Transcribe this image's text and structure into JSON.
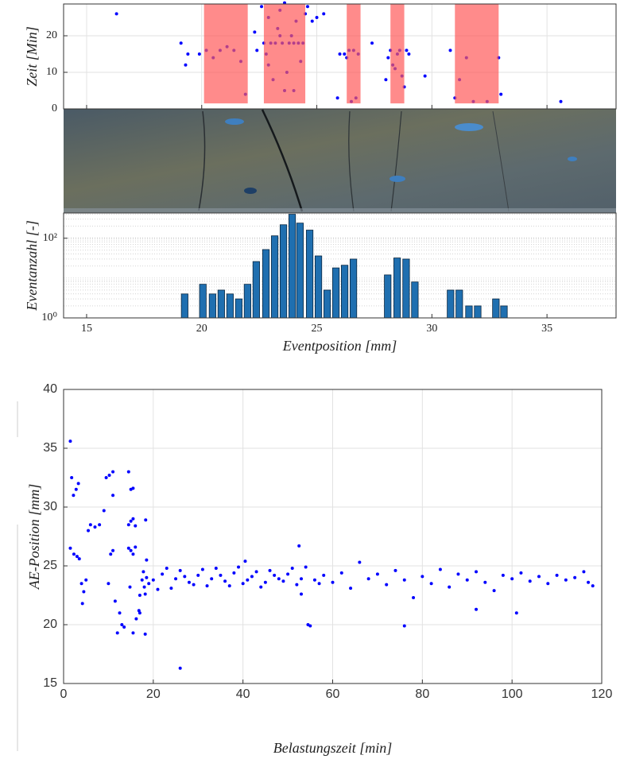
{
  "chart_data": [
    {
      "type": "scatter",
      "ylabel": "Zeit [Min]",
      "xlim": [
        14,
        38
      ],
      "xticks": [
        15,
        20,
        25,
        30,
        35
      ],
      "xtick_labels": false,
      "ylim": [
        0,
        28.7
      ],
      "yticks": [
        0,
        10,
        20
      ],
      "grid": true,
      "regions": [
        {
          "x": [
            20.1,
            22.0
          ],
          "y": [
            1.5,
            28.7
          ]
        },
        {
          "x": [
            22.7,
            24.5
          ],
          "y": [
            1.5,
            28.7
          ]
        },
        {
          "x": [
            26.3,
            26.9
          ],
          "y": [
            1.5,
            28.7
          ]
        },
        {
          "x": [
            28.2,
            28.8
          ],
          "y": [
            1.5,
            28.7
          ]
        },
        {
          "x": [
            31.0,
            32.9
          ],
          "y": [
            1.5,
            28.7
          ]
        }
      ],
      "region_color": "#ff5a5a",
      "series": [
        {
          "color": "#0000ff",
          "x": [
            16.3,
            19.1,
            19.3,
            19.4,
            19.9,
            20.2,
            20.5,
            20.8,
            21.1,
            21.4,
            21.7,
            21.9,
            22.3,
            22.4,
            22.6,
            22.7,
            22.9,
            23.0,
            23.2,
            23.3,
            23.4,
            23.5,
            23.6,
            23.7,
            23.8,
            23.9,
            24.0,
            24.1,
            24.2,
            24.3,
            24.4,
            24.5,
            22.8,
            23.1,
            23.6,
            24.0,
            24.6,
            24.8,
            25.0,
            25.3,
            22.9,
            23.4,
            25.9,
            26.0,
            26.2,
            26.3,
            26.4,
            26.5,
            26.6,
            26.7,
            26.8,
            27.4,
            28.0,
            28.1,
            28.2,
            28.3,
            28.4,
            28.5,
            28.6,
            28.7,
            28.8,
            28.9,
            29.0,
            29.7,
            30.8,
            31.0,
            31.2,
            31.5,
            31.8,
            32.4,
            32.9,
            33.0,
            35.6
          ],
          "values": [
            26,
            18,
            12,
            15,
            15,
            16,
            14,
            16,
            17,
            16,
            13,
            4,
            21,
            16,
            28,
            18,
            25,
            18,
            18,
            22,
            27,
            18,
            5,
            10,
            18,
            20,
            18,
            24,
            18,
            13,
            18,
            26,
            15,
            8,
            29,
            5,
            28,
            24,
            25,
            26,
            12,
            20,
            3,
            15,
            15,
            14,
            16,
            2,
            16,
            3,
            15,
            18,
            8,
            14,
            16,
            12,
            11,
            15,
            16,
            9,
            6,
            16,
            15,
            9,
            16,
            3,
            8,
            14,
            2,
            2,
            14,
            4,
            2
          ]
        }
      ]
    },
    {
      "type": "bar",
      "ylabel": "Eventanzahl [-]",
      "xlabel": "Eventposition [mm]",
      "xlim": [
        14,
        38
      ],
      "xticks": [
        15,
        20,
        25,
        30,
        35
      ],
      "xtick_labels": true,
      "log_y": true,
      "ylim": [
        1,
        430
      ],
      "yticks": [
        {
          "value": 1,
          "label": "10⁰"
        },
        {
          "value": 100,
          "label": "10²"
        }
      ],
      "minor_yticks": [
        2,
        3,
        4,
        5,
        6,
        7,
        8,
        9,
        10,
        20,
        30,
        40,
        50,
        60,
        70,
        80,
        90,
        200,
        300,
        400
      ],
      "grid": true,
      "color": "#1f6fb0",
      "x": [
        19.26,
        20.05,
        20.47,
        20.85,
        21.23,
        21.61,
        21.99,
        22.37,
        22.79,
        23.17,
        23.55,
        23.93,
        24.27,
        24.69,
        25.07,
        25.45,
        25.83,
        26.21,
        26.59,
        28.08,
        28.49,
        28.88,
        29.26,
        30.81,
        31.19,
        31.61,
        31.99,
        32.78,
        33.13
      ],
      "values": [
        4,
        7,
        4,
        5,
        4,
        3,
        7,
        26,
        52,
        115,
        218,
        400,
        240,
        160,
        36,
        5,
        18,
        21,
        30,
        12,
        32,
        30,
        8,
        5,
        5,
        2,
        2,
        3,
        2
      ]
    },
    {
      "type": "scatter",
      "ylabel": "AE-Position  [mm]",
      "xlabel": "Belastungszeit  [min]",
      "xlim": [
        0,
        120
      ],
      "xticks": [
        0,
        20,
        40,
        60,
        80,
        100,
        120
      ],
      "xtick_labels": true,
      "ylim": [
        15,
        40
      ],
      "yticks": [
        15,
        20,
        25,
        30,
        35,
        40
      ],
      "grid": true,
      "series": [
        {
          "color": "#0000ff",
          "x": [
            1.5,
            1.8,
            2.2,
            2.8,
            3.3,
            1.5,
            2.3,
            3,
            3.5,
            4,
            4.5,
            4.2,
            5,
            5.5,
            6,
            7,
            8,
            9,
            9.5,
            10.2,
            11,
            11,
            10.5,
            11,
            10,
            11.5,
            12,
            12.5,
            13,
            13.5,
            14.5,
            15,
            15.5,
            14.5,
            15,
            15.5,
            16,
            14.5,
            15,
            15.5,
            16,
            14.8,
            15.5,
            16.2,
            16.8,
            17,
            17.5,
            17.8,
            18,
            18.2,
            18.5,
            18.5,
            18.3,
            18.2,
            17,
            20,
            22,
            24,
            26,
            26,
            28,
            30,
            32,
            34,
            36,
            38,
            40,
            40.5,
            42,
            44,
            46,
            48,
            50,
            52,
            52.5,
            53,
            54,
            55,
            54.5,
            56,
            58,
            60,
            62,
            64,
            66,
            68,
            70,
            72,
            74,
            76,
            76,
            78,
            80,
            82,
            84,
            86,
            88,
            90,
            92,
            92,
            94,
            96,
            98,
            100,
            101,
            102,
            104,
            106,
            108,
            110,
            112,
            114,
            116,
            117,
            118,
            19,
            21,
            23,
            25,
            27,
            29,
            31,
            33,
            35,
            37,
            39,
            41,
            43,
            45,
            47,
            49,
            51,
            53,
            57
          ],
          "values": [
            35.6,
            32.5,
            31,
            31.5,
            32,
            26.5,
            26,
            25.8,
            25.6,
            23.5,
            22.8,
            21.8,
            23.8,
            28,
            28.5,
            28.3,
            28.5,
            29.7,
            32.5,
            32.7,
            33,
            31,
            26,
            26.3,
            23.5,
            22,
            19.3,
            21,
            20,
            19.8,
            33,
            31.5,
            31.6,
            28.5,
            28.8,
            29,
            28.4,
            26.5,
            26.3,
            26,
            26.6,
            23.2,
            19.3,
            20.5,
            21.2,
            22.5,
            23.8,
            24.5,
            23.2,
            22.6,
            24,
            25.5,
            28.9,
            19.2,
            21,
            23.8,
            24.3,
            23.1,
            16.3,
            24.6,
            23.6,
            24.2,
            23.3,
            24.8,
            23.7,
            24.4,
            23.5,
            25.4,
            24.1,
            23.2,
            24.6,
            23.9,
            24.3,
            23.4,
            26.7,
            22.6,
            24.9,
            19.9,
            20,
            23.8,
            24.2,
            23.6,
            24.4,
            23.1,
            25.3,
            23.9,
            24.3,
            23.4,
            24.6,
            19.9,
            23.8,
            22.3,
            24.1,
            23.5,
            24.7,
            23.2,
            24.3,
            23.8,
            21.3,
            24.5,
            23.6,
            22.9,
            24.2,
            23.9,
            21,
            24.4,
            23.7,
            24.1,
            23.5,
            24.2,
            23.8,
            24,
            24.5,
            23.6,
            23.3,
            23.5,
            23,
            24.8,
            23.9,
            24.1,
            23.4,
            24.7,
            23.9,
            24.2,
            23.3,
            24.9,
            23.8,
            24.5,
            23.6,
            24.2,
            23.7,
            24.8,
            23.9,
            23.5
          ]
        }
      ]
    }
  ]
}
